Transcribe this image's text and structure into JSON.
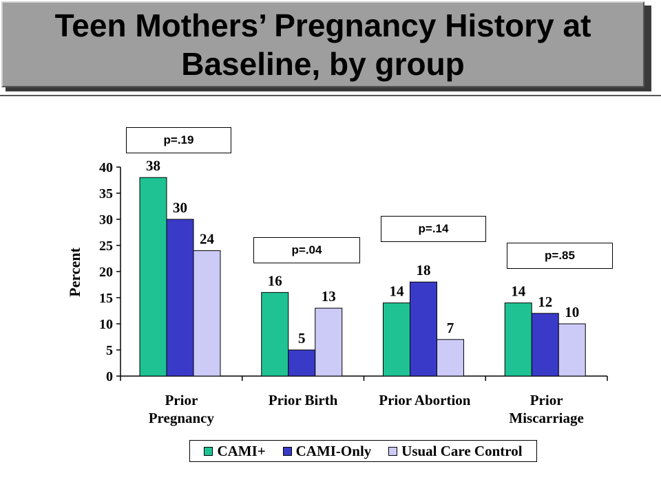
{
  "title": "Teen Mothers’ Pregnancy History at Baseline, by group",
  "p_values": [
    {
      "label": "p=.19"
    },
    {
      "label": "p=.04"
    },
    {
      "label": "p=.14"
    },
    {
      "label": "p=.85"
    }
  ],
  "colors": {
    "cami_plus": "#1fc393",
    "cami_only": "#3a3ac8",
    "usual_care": "#cccaf7"
  },
  "chart_data": {
    "type": "bar",
    "ylabel": "Percent",
    "ylim": [
      0,
      40
    ],
    "yticks": [
      0,
      5,
      10,
      15,
      20,
      25,
      30,
      35,
      40
    ],
    "categories": [
      [
        "Prior",
        "Pregnancy"
      ],
      [
        "Prior Birth"
      ],
      [
        "Prior Abortion"
      ],
      [
        "Prior",
        "Miscarriage"
      ]
    ],
    "series": [
      {
        "name": "CAMI+",
        "values": [
          38,
          16,
          14,
          14
        ]
      },
      {
        "name": "CAMI-Only",
        "values": [
          30,
          5,
          18,
          12
        ]
      },
      {
        "name": "Usual Care Control",
        "values": [
          24,
          13,
          7,
          10
        ]
      }
    ],
    "legend_position": "bottom",
    "grid": false
  }
}
